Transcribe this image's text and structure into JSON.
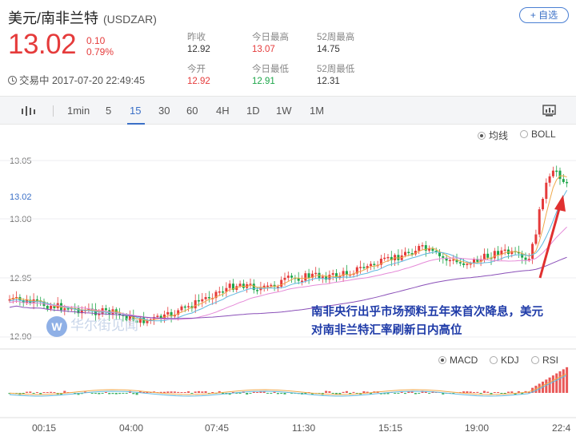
{
  "header": {
    "pair": "美元/南非兰特",
    "symbol": "(USDZAR)",
    "add_label": "+ 自选",
    "price": "13.02",
    "change": "0.10",
    "change_pct": "0.79%",
    "status": "交易中 2017-07-20 22:49:45"
  },
  "stats": [
    {
      "label": "昨收",
      "value": "12.92"
    },
    {
      "label": "今开",
      "value": "12.92"
    },
    {
      "label": "今日最高",
      "value": "13.07"
    },
    {
      "label": "今日最低",
      "value": "12.91"
    },
    {
      "label": "52周最高",
      "value": "14.75"
    },
    {
      "label": "52周最低",
      "value": "12.31"
    }
  ],
  "toolbar": {
    "intervals": [
      "1min",
      "5",
      "15",
      "30",
      "60",
      "4H",
      "1D",
      "1W",
      "1M"
    ],
    "active": "15"
  },
  "overlays": {
    "ma": "均线",
    "boll": "BOLL",
    "selected": "均线"
  },
  "indicators": {
    "macd": "MACD",
    "kdj": "KDJ",
    "rsi": "RSI",
    "selected": "MACD"
  },
  "annotation": {
    "line1": "南非央行出乎市场预料五年来首次降息，美元",
    "line2": "对南非兰特汇率刷新日内高位"
  },
  "watermark": {
    "logo": "W",
    "text": "华尔街见闻"
  },
  "chart_data": {
    "type": "candlestick",
    "y_ticks": [
      "13.05",
      "13.00",
      "12.95",
      "12.90"
    ],
    "current_label": "13.02",
    "x_ticks": [
      "00:15",
      "04:00",
      "07:45",
      "11:30",
      "15:15",
      "19:00",
      "22:4"
    ],
    "ylim": [
      12.88,
      13.08
    ],
    "colors": {
      "up": "#e53b3b",
      "down": "#1ea64a",
      "ma5": "#f0a84a",
      "ma10": "#5fb8e0",
      "ma20": "#e58ad8",
      "ma60": "#8a4fb8",
      "arrow": "#e03030"
    }
  }
}
